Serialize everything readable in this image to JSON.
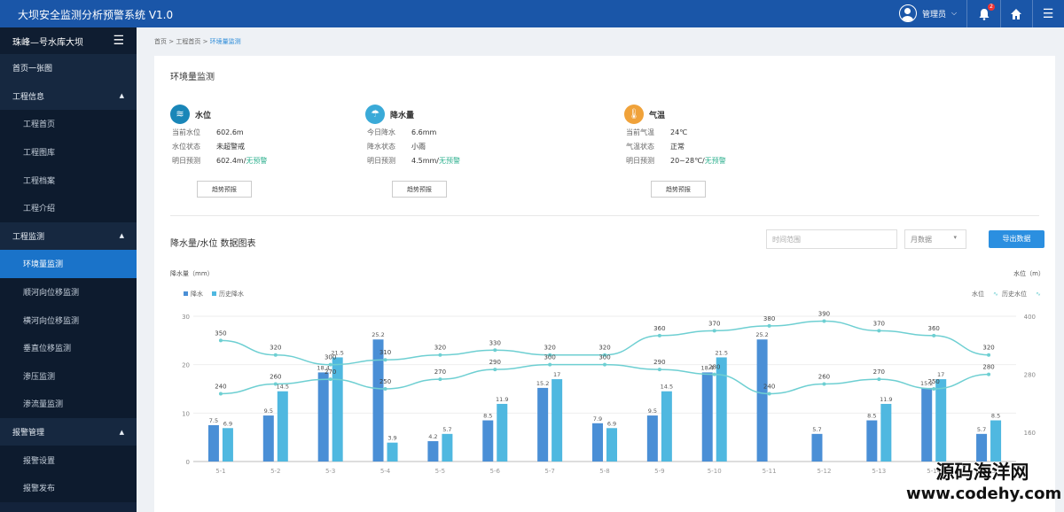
{
  "header": {
    "title": "大坝安全监测分析预警系统 V1.0",
    "user": "管理员",
    "notifications": "2"
  },
  "sidebar": {
    "project": "珠峰—号水库大坝",
    "items": [
      {
        "label": "首页一张图",
        "type": "group"
      },
      {
        "label": "工程信息",
        "type": "group",
        "expanded": true
      },
      {
        "label": "工程首页",
        "type": "sub"
      },
      {
        "label": "工程图库",
        "type": "sub"
      },
      {
        "label": "工程档案",
        "type": "sub"
      },
      {
        "label": "工程介绍",
        "type": "sub"
      },
      {
        "label": "工程监测",
        "type": "group",
        "expanded": true
      },
      {
        "label": "环境量监测",
        "type": "sub",
        "active": true
      },
      {
        "label": "顺河向位移监测",
        "type": "sub"
      },
      {
        "label": "横河向位移监测",
        "type": "sub"
      },
      {
        "label": "垂直位移监测",
        "type": "sub"
      },
      {
        "label": "渗压监测",
        "type": "sub"
      },
      {
        "label": "渗流量监测",
        "type": "sub"
      },
      {
        "label": "报警管理",
        "type": "group",
        "expanded": true
      },
      {
        "label": "报警设置",
        "type": "sub"
      },
      {
        "label": "报警发布",
        "type": "sub"
      }
    ]
  },
  "breadcrumb": {
    "home": "首页",
    "parent": "工程首页",
    "current": "环境量监测"
  },
  "main": {
    "title": "环境量监测",
    "cards": [
      {
        "name": "水位",
        "icon": "water-level-icon",
        "color": "#1a86b8",
        "rows": [
          {
            "k": "当前水位",
            "v": "602.6m"
          },
          {
            "k": "水位状态",
            "v": "未超警戒",
            "green": true
          },
          {
            "k": "明日预测",
            "v": "602.4m/",
            "v2": "无预警"
          }
        ],
        "button": "趋势预报"
      },
      {
        "name": "降水量",
        "icon": "rain-cloud-icon",
        "color": "#3aaad8",
        "rows": [
          {
            "k": "今日降水",
            "v": "6.6mm"
          },
          {
            "k": "降水状态",
            "v": "小雨",
            "green": true
          },
          {
            "k": "明日预测",
            "v": "4.5mm/",
            "v2": "无预警"
          }
        ],
        "button": "趋势预报"
      },
      {
        "name": "气温",
        "icon": "thermometer-icon",
        "color": "#f0a23a",
        "rows": [
          {
            "k": "当前气温",
            "v": "24℃"
          },
          {
            "k": "气温状态",
            "v": "正常",
            "green": true
          },
          {
            "k": "明日预测",
            "v": "20~28℃/",
            "v2": "无预警"
          }
        ],
        "button": "趋势预报"
      }
    ],
    "chart_title": "降水量/水位 数据图表",
    "date_placeholder": "时间范围",
    "select_value": "月数据",
    "export_label": "导出数据"
  },
  "chart_data": {
    "type": "bar",
    "categories": [
      "5-1",
      "5-2",
      "5-3",
      "5-4",
      "5-5",
      "5-6",
      "5-7",
      "5-8",
      "5-9",
      "5-10",
      "5-11",
      "5-12",
      "5-13",
      "5-14",
      "5-15"
    ],
    "ylabel_left": "降水量（mm）",
    "ylabel_right": "水位（m）",
    "ylim_left": [
      0,
      30
    ],
    "left_ticks": [
      0,
      10,
      20,
      30
    ],
    "ylim_right": [
      100,
      400
    ],
    "right_ticks": [
      160,
      280,
      400
    ],
    "bar_series": [
      {
        "name": "降水",
        "color": "#4a8fd6",
        "values": [
          7.5,
          9.5,
          18.4,
          25.2,
          4.2,
          8.5,
          15.2,
          7.9,
          9.5,
          18.4,
          25.2,
          5.7,
          8.5,
          15.2,
          5.7
        ]
      },
      {
        "name": "历史降水",
        "color": "#4fb8e0",
        "values": [
          6.9,
          14.5,
          21.5,
          3.9,
          5.7,
          11.9,
          17,
          6.9,
          14.5,
          21.5,
          null,
          null,
          11.9,
          17,
          8.5
        ]
      }
    ],
    "line_series": [
      {
        "name": "水位",
        "color": "#6ecfd2",
        "values": [
          350,
          320,
          300,
          310,
          320,
          330,
          320,
          320,
          360,
          370,
          380,
          390,
          370,
          360,
          320
        ]
      },
      {
        "name": "历史水位",
        "color": "#6ecfd2",
        "values": [
          240,
          260,
          270,
          250,
          270,
          290,
          300,
          300,
          290,
          280,
          240,
          260,
          270,
          250,
          280
        ]
      }
    ],
    "legend_left": [
      "降水",
      "历史降水"
    ],
    "legend_right": [
      "水位",
      "历史水位"
    ]
  },
  "watermark": {
    "line1": "源码海洋网",
    "line2": "www.codehy.com"
  }
}
